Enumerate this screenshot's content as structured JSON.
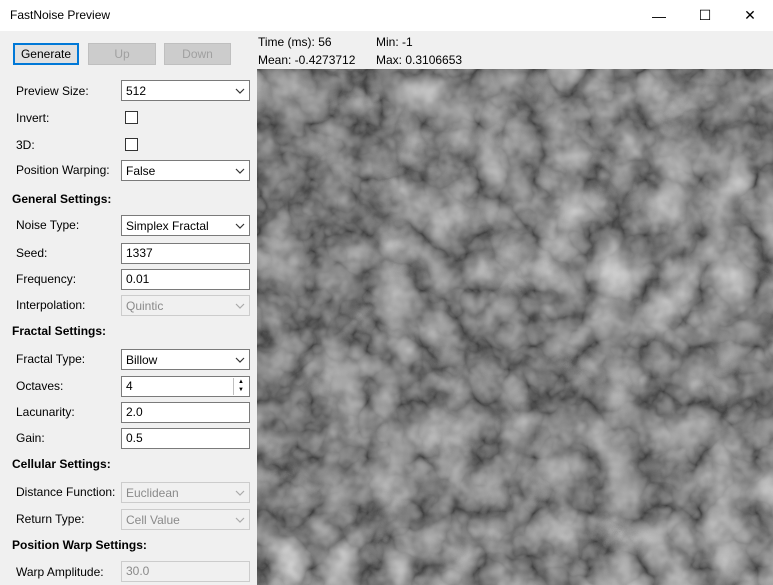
{
  "window": {
    "title": "FastNoise Preview",
    "min_glyph": "—",
    "max_glyph": "☐",
    "close_glyph": "✕"
  },
  "buttons": {
    "generate": "Generate",
    "up": "Up",
    "down": "Down"
  },
  "stats": {
    "time": "Time (ms): 56",
    "min": "Min:  -1",
    "mean": "Mean: -0.4273712",
    "max": "Max: 0.3106653"
  },
  "settings": {
    "preview_size_label": "Preview Size:",
    "preview_size_value": "512",
    "invert_label": "Invert:",
    "three_d_label": "3D:",
    "position_warping_label": "Position Warping:",
    "position_warping_value": "False"
  },
  "general": {
    "heading": "General Settings:",
    "noise_type_label": "Noise Type:",
    "noise_type_value": "Simplex Fractal",
    "seed_label": "Seed:",
    "seed_value": "1337",
    "frequency_label": "Frequency:",
    "frequency_value": "0.01",
    "interpolation_label": "Interpolation:",
    "interpolation_value": "Quintic"
  },
  "fractal": {
    "heading": "Fractal Settings:",
    "fractal_type_label": "Fractal Type:",
    "fractal_type_value": "Billow",
    "octaves_label": "Octaves:",
    "octaves_value": "4",
    "lacunarity_label": "Lacunarity:",
    "lacunarity_value": "2.0",
    "gain_label": "Gain:",
    "gain_value": "0.5"
  },
  "cellular": {
    "heading": "Cellular Settings:",
    "distance_function_label": "Distance Function:",
    "distance_function_value": "Euclidean",
    "return_type_label": "Return Type:",
    "return_type_value": "Cell Value"
  },
  "warp": {
    "heading": "Position Warp Settings:",
    "warp_amplitude_label": "Warp Amplitude:",
    "warp_amplitude_value": "30.0"
  },
  "colors": {
    "accent": "#0078d7",
    "panel": "#f0f0f0"
  }
}
